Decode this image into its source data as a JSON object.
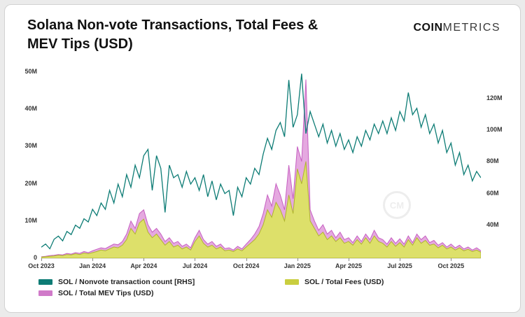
{
  "header": {
    "title": "Solana Non-vote Transactions, Total Fees & MEV Tips (USD)",
    "brand_bold": "COIN",
    "brand_light": "METRICS"
  },
  "watermark": {
    "label": "CM"
  },
  "chart_data": {
    "type": "line",
    "title": "Solana Non-vote Transactions, Total Fees & MEV Tips (USD)",
    "grid": "off",
    "legend_position": "bottom",
    "x_ticks": [
      {
        "label": "Oct 2023",
        "week": 0
      },
      {
        "label": "Jan 2024",
        "week": 12
      },
      {
        "label": "Apr 2024",
        "week": 24
      },
      {
        "label": "Jul 2024",
        "week": 36
      },
      {
        "label": "Oct 2024",
        "week": 48
      },
      {
        "label": "Jan 2025",
        "week": 60
      },
      {
        "label": "Apr 2025",
        "week": 72
      },
      {
        "label": "Jul 2025",
        "week": 84
      },
      {
        "label": "Oct 2025",
        "week": 96
      }
    ],
    "left_axis": {
      "min": 0,
      "max": 50,
      "ticks": [
        {
          "label": "0",
          "value": 0
        },
        {
          "label": "10M",
          "value": 10
        },
        {
          "label": "20M",
          "value": 20
        },
        {
          "label": "30M",
          "value": 30
        },
        {
          "label": "40M",
          "value": 40
        },
        {
          "label": "50M",
          "value": 50
        }
      ]
    },
    "right_axis": {
      "min": 19,
      "max": 137,
      "ticks": [
        {
          "label": "40M",
          "value": 40
        },
        {
          "label": "60M",
          "value": 60
        },
        {
          "label": "80M",
          "value": 80
        },
        {
          "label": "100M",
          "value": 100
        },
        {
          "label": "120M",
          "value": 120
        }
      ]
    },
    "series": [
      {
        "id": "mev-tips",
        "name": "SOL / Total MEV Tips (USD)",
        "axis": "left",
        "type": "area",
        "color": "#c65fc1",
        "fill": "#e5a9e0",
        "values": [
          0.4,
          0.5,
          0.7,
          0.8,
          1.0,
          0.9,
          1.3,
          1.1,
          1.5,
          1.3,
          1.8,
          1.5,
          2.0,
          2.4,
          2.8,
          2.6,
          3.2,
          3.8,
          3.6,
          4.5,
          6.5,
          10.0,
          8.0,
          12.0,
          13.0,
          9.0,
          7.0,
          8.0,
          6.5,
          4.5,
          5.5,
          4.0,
          4.5,
          3.2,
          3.8,
          2.8,
          5.5,
          7.5,
          5.0,
          3.8,
          4.5,
          3.2,
          3.8,
          2.6,
          2.8,
          2.2,
          3.2,
          2.5,
          3.8,
          5.0,
          6.5,
          8.5,
          12.0,
          17.0,
          14.0,
          20.0,
          17.0,
          13.0,
          25.0,
          16.0,
          30.0,
          26.0,
          48.0,
          13.0,
          10.0,
          7.5,
          9.0,
          6.5,
          7.5,
          5.5,
          7.0,
          5.0,
          5.5,
          4.2,
          6.0,
          4.5,
          6.5,
          5.0,
          7.5,
          5.5,
          5.0,
          3.8,
          5.5,
          4.0,
          5.2,
          3.8,
          6.0,
          4.2,
          6.5,
          5.0,
          6.0,
          4.2,
          4.8,
          3.5,
          4.2,
          3.0,
          3.8,
          2.8,
          3.5,
          2.5,
          3.0,
          2.2,
          2.8,
          2.0
        ]
      },
      {
        "id": "total-fees",
        "name": "SOL / Total Fees (USD)",
        "axis": "left",
        "type": "area",
        "color": "#b0b52f",
        "fill": "#dde06a",
        "values": [
          0.3,
          0.4,
          0.5,
          0.6,
          0.8,
          0.7,
          1.0,
          0.9,
          1.2,
          1.0,
          1.4,
          1.2,
          1.5,
          1.8,
          2.2,
          2.0,
          2.5,
          3.0,
          2.8,
          3.5,
          5.0,
          8.0,
          6.5,
          9.5,
          10.5,
          7.0,
          5.5,
          6.5,
          5.0,
          3.5,
          4.5,
          3.0,
          3.5,
          2.5,
          3.0,
          2.2,
          4.5,
          6.0,
          4.0,
          3.0,
          3.5,
          2.5,
          3.0,
          2.0,
          2.2,
          1.8,
          2.5,
          2.0,
          3.0,
          4.0,
          5.0,
          6.5,
          9.0,
          13.0,
          11.0,
          15.0,
          13.0,
          10.0,
          17.0,
          12.0,
          24.0,
          20.0,
          26.0,
          10.0,
          8.0,
          6.0,
          7.0,
          5.0,
          6.0,
          4.5,
          5.5,
          4.0,
          4.5,
          3.5,
          5.0,
          3.8,
          5.5,
          4.0,
          6.0,
          4.5,
          4.0,
          3.0,
          4.5,
          3.2,
          4.2,
          3.0,
          5.0,
          3.5,
          5.5,
          4.0,
          4.8,
          3.5,
          3.8,
          2.8,
          3.5,
          2.5,
          3.0,
          2.2,
          2.8,
          2.0,
          2.4,
          1.8,
          2.2,
          1.6
        ]
      },
      {
        "id": "nonvote-count",
        "name": "SOL / Nonvote transaction count [RHS]",
        "axis": "right",
        "type": "line",
        "color": "#0d7c75",
        "fill": "none",
        "values": [
          26,
          28,
          25,
          31,
          33,
          30,
          36,
          34,
          40,
          38,
          44,
          42,
          50,
          46,
          54,
          50,
          62,
          54,
          66,
          58,
          72,
          64,
          78,
          70,
          84,
          88,
          62,
          84,
          76,
          48,
          78,
          70,
          72,
          64,
          74,
          66,
          70,
          62,
          72,
          58,
          68,
          56,
          66,
          60,
          62,
          46,
          64,
          58,
          70,
          66,
          76,
          72,
          85,
          95,
          88,
          100,
          105,
          96,
          132,
          102,
          110,
          136,
          98,
          112,
          104,
          96,
          104,
          92,
          100,
          90,
          98,
          88,
          94,
          86,
          96,
          90,
          100,
          94,
          104,
          98,
          106,
          98,
          108,
          100,
          112,
          106,
          124,
          110,
          114,
          102,
          110,
          98,
          104,
          92,
          100,
          86,
          92,
          78,
          86,
          72,
          78,
          68,
          74,
          70
        ]
      }
    ],
    "legend": [
      {
        "label": "SOL / Nonvote transaction count [RHS]",
        "color": "#0d7c75"
      },
      {
        "label": "SOL / Total Fees (USD)",
        "color": "#c9ce3f"
      },
      {
        "label": "SOL / Total MEV Tips (USD)",
        "color": "#d07ac9"
      }
    ]
  }
}
